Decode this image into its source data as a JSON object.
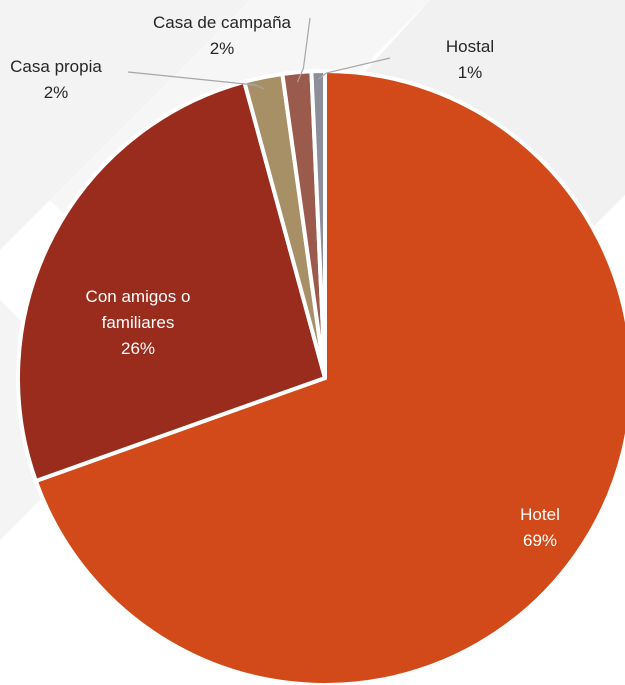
{
  "chart_data": {
    "type": "pie",
    "title": "",
    "slices": [
      {
        "label_lines": [
          "Hotel"
        ],
        "percent_label": "69%",
        "value": 69,
        "color": "#D24A19"
      },
      {
        "label_lines": [
          "Con amigos o",
          "familiares"
        ],
        "percent_label": "26%",
        "value": 26,
        "color": "#9A2C1E"
      },
      {
        "label_lines": [
          "Casa propia"
        ],
        "percent_label": "2%",
        "value": 2,
        "color": "#A79066"
      },
      {
        "label_lines": [
          "Casa de campaña"
        ],
        "percent_label": "2%",
        "value": 1.5,
        "color": "#9A5B4C"
      },
      {
        "label_lines": [
          "Hostal"
        ],
        "percent_label": "1%",
        "value": 0.7,
        "color": "#8C8F99"
      }
    ]
  }
}
